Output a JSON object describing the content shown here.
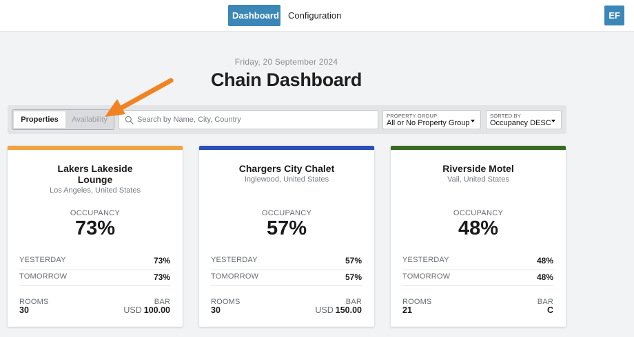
{
  "nav": {
    "dashboard_label": "Dashboard",
    "configuration_label": "Configuration",
    "avatar_initials": "EF",
    "accent_color": "#3b87b7"
  },
  "header": {
    "date": "Friday, 20 September 2024",
    "title": "Chain Dashboard"
  },
  "toolbar": {
    "tabs": [
      {
        "label": "Properties",
        "active": true
      },
      {
        "label": "Availability",
        "active": false
      }
    ],
    "search_placeholder": "Search by Name, City, Country",
    "property_group": {
      "label": "PROPERTY GROUP",
      "value": "All or No Property Group"
    },
    "sorted_by": {
      "label": "SORTED BY",
      "value": "Occupancy DESC"
    }
  },
  "labels": {
    "occupancy": "OCCUPANCY",
    "yesterday": "YESTERDAY",
    "tomorrow": "TOMORROW",
    "rooms": "ROOMS",
    "bar": "BAR"
  },
  "cards": [
    {
      "name_line1": "Lakers Lakeside",
      "name_line2": "Lounge",
      "location": "Los Angeles, United States",
      "color": "#f0a341",
      "occupancy": "73%",
      "yesterday": "73%",
      "tomorrow": "73%",
      "rooms": "30",
      "bar_currency": "USD",
      "bar_value": "100.00"
    },
    {
      "name_line1": "Chargers City Chalet",
      "location": "Inglewood, United States",
      "color": "#2b4fb9",
      "occupancy": "57%",
      "yesterday": "57%",
      "tomorrow": "57%",
      "rooms": "30",
      "bar_currency": "USD",
      "bar_value": "150.00"
    },
    {
      "name_line1": "Riverside Motel",
      "location": "Vail, United States",
      "color": "#3a6b23",
      "occupancy": "48%",
      "yesterday": "48%",
      "tomorrow": "48%",
      "rooms": "21",
      "bar_currency": "",
      "bar_value": "C"
    }
  ],
  "annotation": {
    "arrow_color": "#f08323"
  }
}
